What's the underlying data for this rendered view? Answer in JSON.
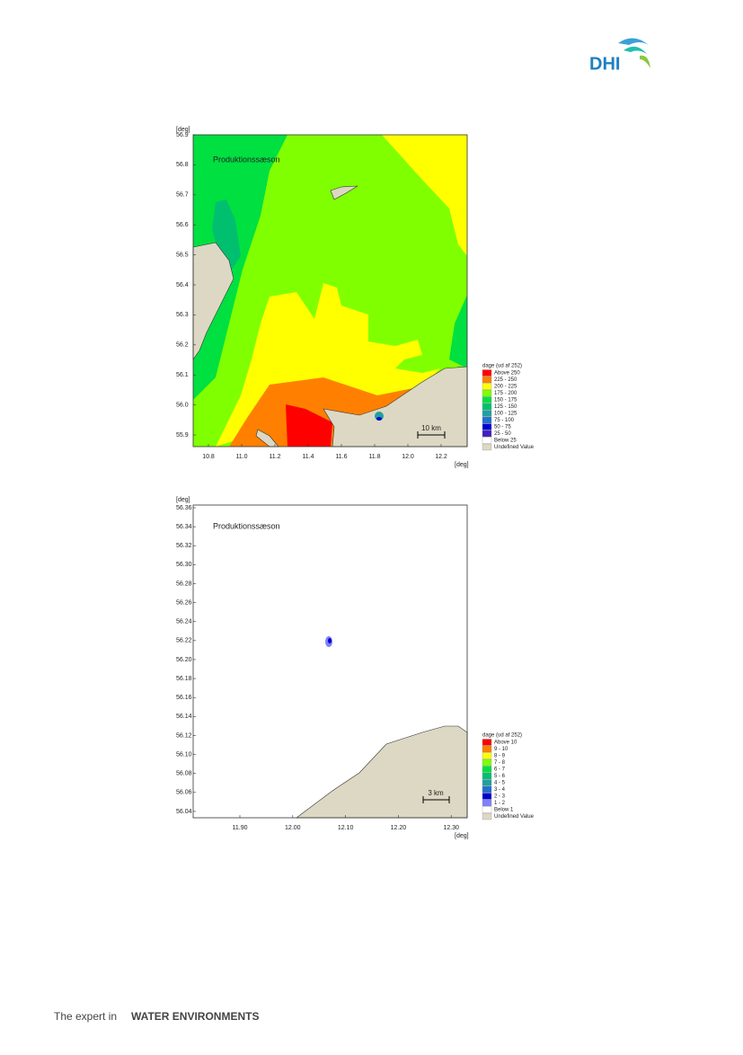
{
  "header": {
    "logo": "DHI"
  },
  "maps": [
    {
      "y_unit": "[deg]",
      "x_unit": "[deg]",
      "label": "Produktionssæson",
      "yticks": [
        "56.9",
        "56.8",
        "56.7",
        "56.6",
        "56.5",
        "56.4",
        "56.3",
        "56.2",
        "56.1",
        "56.0",
        "55.9"
      ],
      "xticks": [
        "10.8",
        "11.0",
        "11.2",
        "11.4",
        "11.6",
        "11.8",
        "12.0",
        "12.2"
      ],
      "scale_bar": "10 km",
      "legend": {
        "title": "dage (ud af 252)",
        "items": [
          {
            "label": "Above 250",
            "color": "#ff0000"
          },
          {
            "label": "225 - 250",
            "color": "#ff8000"
          },
          {
            "label": "200 - 225",
            "color": "#ffff00"
          },
          {
            "label": "175 - 200",
            "color": "#80ff00"
          },
          {
            "label": "150 - 175",
            "color": "#00e040"
          },
          {
            "label": "125 - 150",
            "color": "#00c070"
          },
          {
            "label": "100 - 125",
            "color": "#20a0a0"
          },
          {
            "label": "75 - 100",
            "color": "#2070d0"
          },
          {
            "label": "50 - 75",
            "color": "#0000d0"
          },
          {
            "label": "25 - 50",
            "color": "#4020c0"
          },
          {
            "label": "Below  25",
            "color": "#ffffff"
          },
          {
            "label": "Undefined Value",
            "color": "#ddd8c4"
          }
        ]
      }
    },
    {
      "y_unit": "[deg]",
      "x_unit": "[deg]",
      "label": "Produktionssæson",
      "yticks": [
        "56.36",
        "56.34",
        "56.32",
        "56.30",
        "56.28",
        "56.26",
        "56.24",
        "56.22",
        "56.20",
        "56.18",
        "56.16",
        "56.14",
        "56.12",
        "56.10",
        "56.08",
        "56.06",
        "56.04"
      ],
      "xticks": [
        "11.90",
        "12.00",
        "12.10",
        "12.20",
        "12.30"
      ],
      "scale_bar": "3 km",
      "legend": {
        "title": "dage (ud af 252)",
        "items": [
          {
            "label": "Above 10",
            "color": "#ff0000"
          },
          {
            "label": "9 - 10",
            "color": "#ff8000"
          },
          {
            "label": "8 - 9",
            "color": "#ffff00"
          },
          {
            "label": "7 - 8",
            "color": "#80ff00"
          },
          {
            "label": "6 - 7",
            "color": "#00e040"
          },
          {
            "label": "5 - 6",
            "color": "#00c070"
          },
          {
            "label": "4 - 5",
            "color": "#20a0a0"
          },
          {
            "label": "3 - 4",
            "color": "#2070d0"
          },
          {
            "label": "2 - 3",
            "color": "#0000d0"
          },
          {
            "label": "1 - 2",
            "color": "#8080ff"
          },
          {
            "label": "Below  1",
            "color": "#ffffff"
          },
          {
            "label": "Undefined Value",
            "color": "#ddd8c4"
          }
        ]
      }
    }
  ],
  "footer": {
    "lead": "The expert in",
    "strong": "WATER ENVIRONMENTS"
  }
}
